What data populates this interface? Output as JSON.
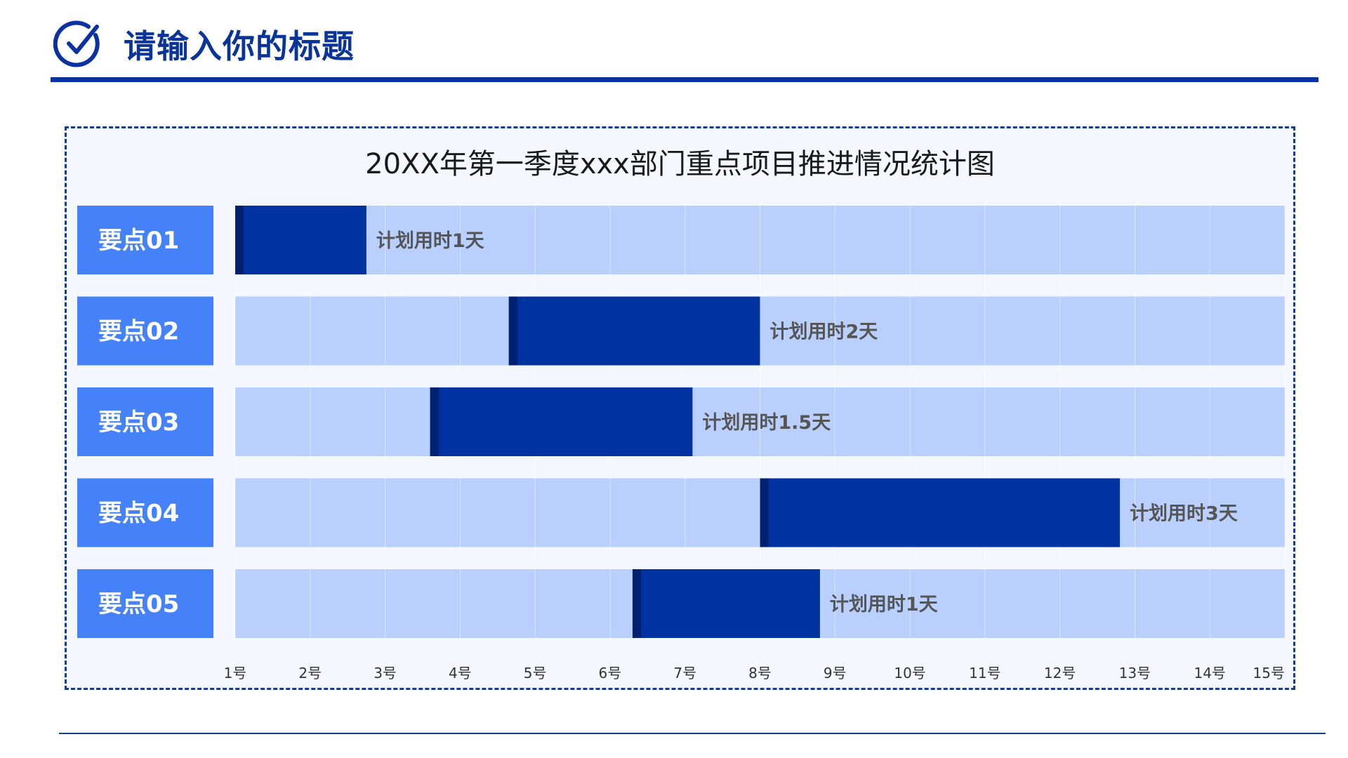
{
  "header": {
    "title": "请输入你的标题",
    "icon": "check-circle-icon"
  },
  "colors": {
    "accent": "#0b32a0",
    "label_bg": "#4582fa",
    "track_bg": "#b9cffd",
    "bar": "#0033a0",
    "bar_edge": "#002070",
    "bar_text": "#555555"
  },
  "chart_data": {
    "type": "bar",
    "orientation": "horizontal-gantt",
    "title": "20XX年第一季度xxx部门重点项目推进情况统计图",
    "x_ticks": [
      "1号",
      "2号",
      "3号",
      "4号",
      "5号",
      "6号",
      "7号",
      "8号",
      "9号",
      "10号",
      "11号",
      "12号",
      "13号",
      "14号",
      "15号"
    ],
    "xlim": [
      1,
      15
    ],
    "categories": [
      "要点01",
      "要点02",
      "要点03",
      "要点04",
      "要点05"
    ],
    "start": [
      1.0,
      4.65,
      3.6,
      8.0,
      6.3
    ],
    "end": [
      2.75,
      8.0,
      7.1,
      12.8,
      8.8
    ],
    "bar_labels": [
      "计划用时1天",
      "计划用时2天",
      "计划用时1.5天",
      "计划用时3天",
      "计划用时1天"
    ],
    "grid": true
  }
}
